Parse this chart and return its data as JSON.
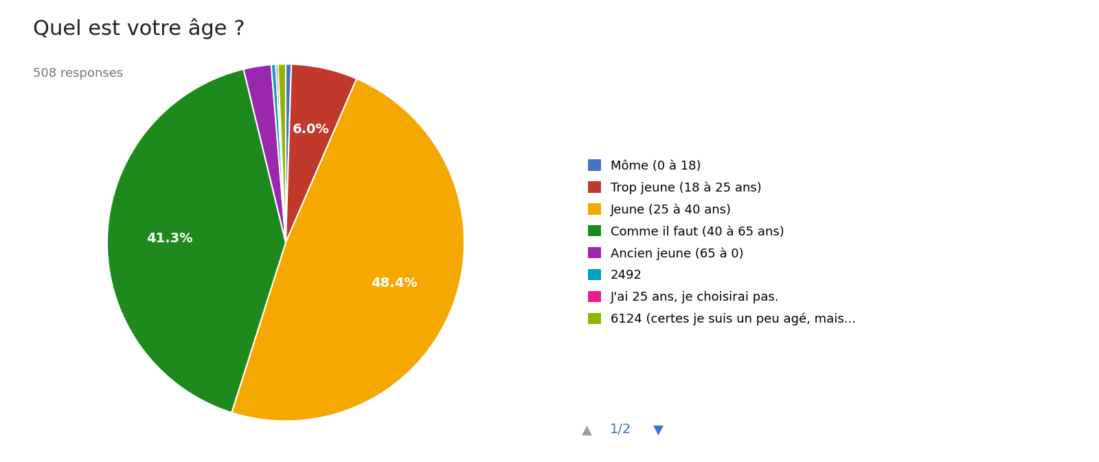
{
  "title": "Quel est votre âge ?",
  "subtitle": "508 responses",
  "labels": [
    "Môme (0 à 18)",
    "Trop jeune (18 à 25 ans)",
    "Jeune (25 à 40 ans)",
    "Comme il faut (40 à 65 ans)",
    "Ancien jeune (65 à 0)",
    "2492",
    "J'ai 25 ans, je choisirai pas.",
    "6124 (certes je suis un peu agé, mais..."
  ],
  "values": [
    0.5,
    6.0,
    48.4,
    41.3,
    2.5,
    0.4,
    0.2,
    0.7
  ],
  "colors": [
    "#4472C4",
    "#C0392B",
    "#F4A800",
    "#1E8A1E",
    "#9B27AF",
    "#00A0C0",
    "#E91E8C",
    "#8DB600"
  ],
  "label_threshold": 5.0,
  "background_color": "#ffffff",
  "title_fontsize": 22,
  "subtitle_fontsize": 13,
  "legend_fontsize": 13,
  "pie_label_fontsize": 14
}
